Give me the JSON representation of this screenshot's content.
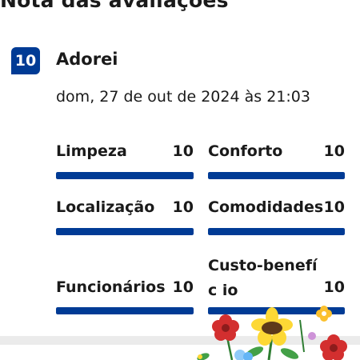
{
  "section": {
    "title": "Nota das avaliações"
  },
  "review": {
    "score": "10",
    "label": "Adorei",
    "date": "dom, 27 de out de 2024 às 21:03"
  },
  "categories": [
    {
      "name": "Limpeza",
      "score": "10",
      "fraction": 1.0
    },
    {
      "name": "Conforto",
      "score": "10",
      "fraction": 1.0
    },
    {
      "name": "Localização",
      "score": "10",
      "fraction": 1.0
    },
    {
      "name": "Comodidades",
      "score": "10",
      "fraction": 1.0
    },
    {
      "name": "Funcionários",
      "score": "10",
      "fraction": 1.0
    },
    {
      "name": "Custo-benefíc io",
      "score": "10",
      "fraction": 1.0
    }
  ],
  "colors": {
    "accent": "#003b95",
    "bar_track": "#e6e6e6"
  },
  "decoration": {
    "icon": "flowers-illustration-icon"
  }
}
